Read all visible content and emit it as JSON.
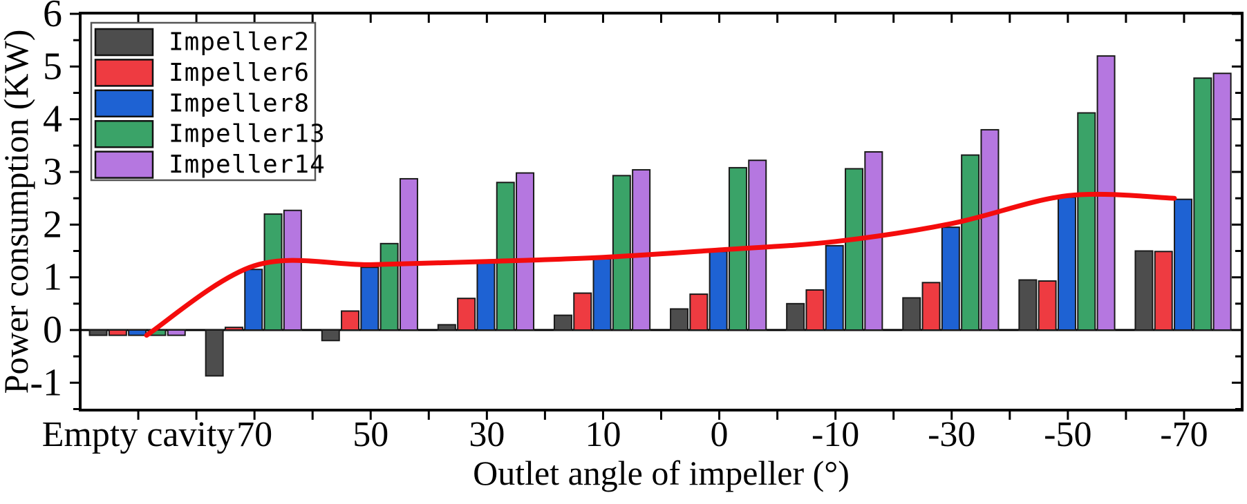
{
  "chart_data": {
    "type": "bar",
    "title": "",
    "xlabel": "Outlet angle of impeller (°)",
    "ylabel": "Power consumption (KW)",
    "categories": [
      "Empty cavity",
      "70",
      "50",
      "30",
      "10",
      "0",
      "-10",
      "-30",
      "-50",
      "-70"
    ],
    "series": [
      {
        "name": "Impeller2",
        "color": "#4d4d4d",
        "values": [
          -0.1,
          -0.87,
          -0.2,
          0.1,
          0.28,
          0.4,
          0.5,
          0.61,
          0.95,
          1.5
        ]
      },
      {
        "name": "Impeller6",
        "color": "#ee3b41",
        "values": [
          -0.1,
          0.05,
          0.36,
          0.6,
          0.7,
          0.68,
          0.76,
          0.9,
          0.93,
          1.49
        ]
      },
      {
        "name": "Impeller8",
        "color": "#1e62d3",
        "values": [
          -0.1,
          1.15,
          1.19,
          1.27,
          1.35,
          1.49,
          1.6,
          1.95,
          2.52,
          2.48
        ]
      },
      {
        "name": "Impeller13",
        "color": "#3aa368",
        "values": [
          -0.1,
          2.2,
          1.64,
          2.8,
          2.93,
          3.08,
          3.06,
          3.32,
          4.12,
          4.78
        ]
      },
      {
        "name": "Impeller14",
        "color": "#b577e0",
        "values": [
          -0.1,
          2.27,
          2.87,
          2.98,
          3.04,
          3.22,
          3.38,
          3.8,
          5.2,
          4.87
        ]
      }
    ],
    "trend_line": {
      "series": "Impeller8",
      "color": "#f40c0c",
      "values": [
        -0.1,
        1.22,
        1.24,
        1.3,
        1.38,
        1.52,
        1.68,
        2.02,
        2.55,
        2.5
      ]
    },
    "y_axis": {
      "min": -1.52,
      "max": 6.03,
      "major_ticks": [
        6,
        5,
        4,
        3,
        2,
        1,
        0,
        -1
      ],
      "minor_step": 0.5
    },
    "grid": false,
    "legend_position": "top-left",
    "bar_outline_color": "#1a1a1a",
    "axis_color": "#000000"
  }
}
